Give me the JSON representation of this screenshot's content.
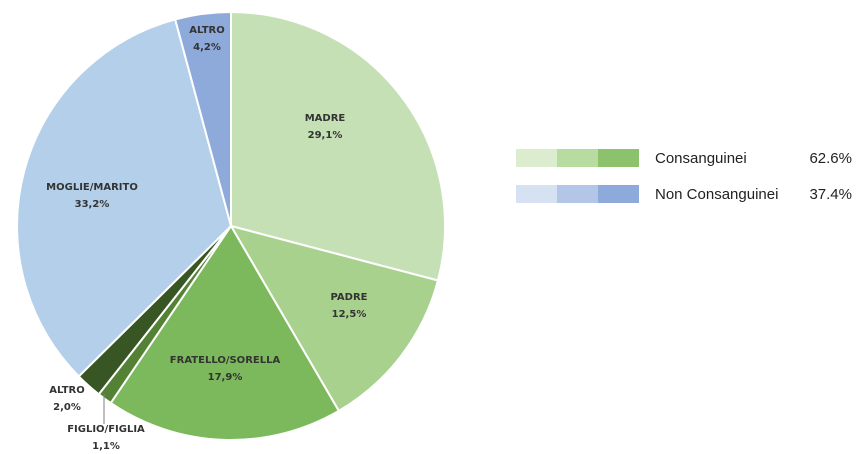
{
  "chart_data": {
    "type": "pie",
    "title": "",
    "slices": [
      {
        "label": "MADRE",
        "value_text": "29,1%",
        "value": 29.1,
        "color": "#c5e0b4",
        "group": "Consanguinei"
      },
      {
        "label": "PADRE",
        "value_text": "12,5%",
        "value": 12.5,
        "color": "#a9d18e",
        "group": "Consanguinei"
      },
      {
        "label": "FRATELLO/SORELLA",
        "value_text": "17,9%",
        "value": 17.9,
        "color": "#7cb95c",
        "group": "Consanguinei"
      },
      {
        "label": "FIGLIO/FIGLIA",
        "value_text": "1,1%",
        "value": 1.1,
        "color": "#548235",
        "group": "Consanguinei"
      },
      {
        "label": "ALTRO",
        "value_text": "2,0%",
        "value": 2.0,
        "color": "#375623",
        "group": "Consanguinei"
      },
      {
        "label": "MOGLIE/MARITO",
        "value_text": "33,2%",
        "value": 33.2,
        "color": "#b4cfe9",
        "group": "Non Consanguinei"
      },
      {
        "label": "ALTRO",
        "value_text": "4,2%",
        "value": 4.2,
        "color": "#8eaadb",
        "group": "Non Consanguinei"
      }
    ],
    "legend": {
      "placement": "right",
      "entries": [
        {
          "name": "Consanguinei",
          "value_text": "62.6%",
          "colors": [
            "#dbeccf",
            "#b8dba0",
            "#8cc26c"
          ]
        },
        {
          "name": "Non Consanguinei",
          "value_text": "37.4%",
          "colors": [
            "#d6e1f2",
            "#b4c6e7",
            "#8eaadb"
          ]
        }
      ]
    }
  }
}
